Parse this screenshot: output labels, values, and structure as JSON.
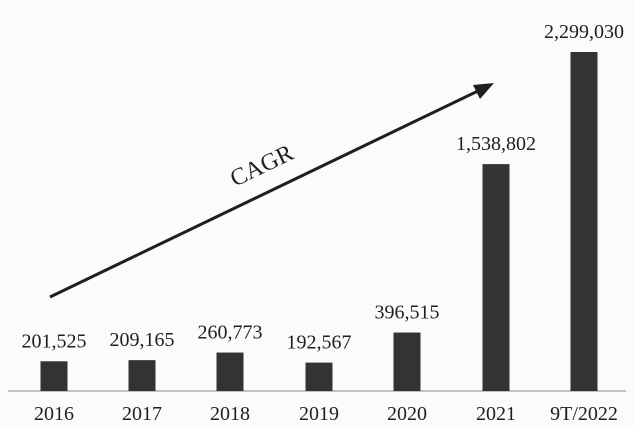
{
  "chart_data": {
    "type": "bar",
    "categories": [
      "2016",
      "2017",
      "2018",
      "2019",
      "2020",
      "2021",
      "9T/2022"
    ],
    "values": [
      201525,
      209165,
      260773,
      192567,
      396515,
      1538802,
      2299030
    ],
    "value_labels": [
      "201,525",
      "209,165",
      "260,773",
      "192,567",
      "396,515",
      "1,538,802",
      "2,299,030"
    ],
    "annotation": "CAGR",
    "title": "",
    "xlabel": "",
    "ylabel": "",
    "ylim": [
      0,
      2299030
    ],
    "grid": false,
    "legend": "none",
    "colors": {
      "bar": "#333333",
      "text": "#1f1f1f",
      "axis": "#8a8a8a",
      "background": "#fbfbfb",
      "arrow": "#1f1f1f"
    }
  }
}
